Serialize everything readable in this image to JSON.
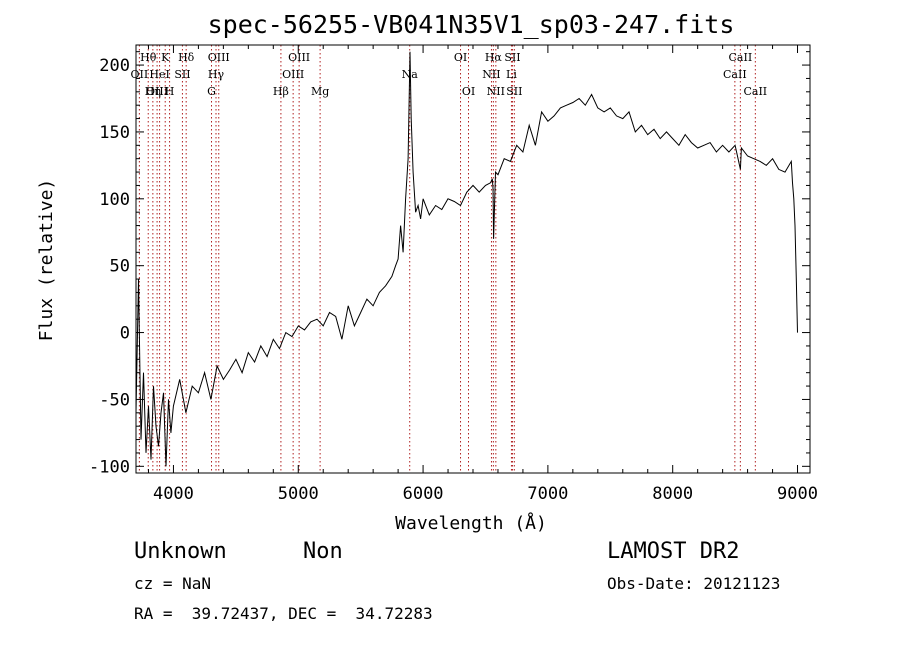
{
  "chart_data": {
    "type": "line",
    "title": "spec-56255-VB041N35V1_sp03-247.fits",
    "xlabel": "Wavelength (Å)",
    "ylabel": "Flux (relative)",
    "xlim": [
      3700,
      9100
    ],
    "ylim": [
      -105,
      215
    ],
    "x_ticks": [
      "4000",
      "5000",
      "6000",
      "7000",
      "8000",
      "9000"
    ],
    "y_ticks": [
      "-100",
      "-50",
      "0",
      "50",
      "100",
      "150",
      "200"
    ],
    "spectrum": {
      "x": [
        3700,
        3720,
        3740,
        3760,
        3780,
        3800,
        3820,
        3840,
        3860,
        3880,
        3900,
        3920,
        3940,
        3960,
        3980,
        4000,
        4050,
        4100,
        4150,
        4200,
        4250,
        4300,
        4350,
        4400,
        4450,
        4500,
        4550,
        4600,
        4650,
        4700,
        4750,
        4800,
        4850,
        4900,
        4950,
        5000,
        5050,
        5100,
        5150,
        5200,
        5250,
        5300,
        5350,
        5400,
        5450,
        5500,
        5550,
        5600,
        5650,
        5700,
        5750,
        5780,
        5800,
        5820,
        5840,
        5860,
        5880,
        5895,
        5905,
        5920,
        5940,
        5960,
        5980,
        6000,
        6050,
        6100,
        6150,
        6200,
        6250,
        6300,
        6350,
        6400,
        6450,
        6500,
        6540,
        6555,
        6560,
        6565,
        6580,
        6600,
        6650,
        6700,
        6750,
        6800,
        6850,
        6900,
        6950,
        7000,
        7050,
        7100,
        7150,
        7200,
        7250,
        7300,
        7350,
        7400,
        7450,
        7500,
        7550,
        7600,
        7650,
        7700,
        7750,
        7800,
        7850,
        7900,
        7950,
        8000,
        8050,
        8100,
        8150,
        8200,
        8250,
        8300,
        8350,
        8400,
        8450,
        8500,
        8542,
        8550,
        8600,
        8650,
        8700,
        8750,
        8800,
        8850,
        8900,
        8950,
        8960,
        8970,
        8980,
        8990,
        9000
      ],
      "y": [
        -60,
        40,
        -80,
        -30,
        -90,
        -55,
        -95,
        -40,
        -70,
        -85,
        -60,
        -45,
        -100,
        -50,
        -75,
        -55,
        -35,
        -60,
        -40,
        -45,
        -30,
        -50,
        -25,
        -35,
        -28,
        -20,
        -30,
        -15,
        -22,
        -10,
        -18,
        -5,
        -12,
        0,
        -3,
        5,
        2,
        8,
        10,
        5,
        15,
        12,
        -5,
        20,
        5,
        15,
        25,
        20,
        30,
        35,
        42,
        50,
        55,
        80,
        60,
        100,
        130,
        210,
        160,
        120,
        90,
        95,
        85,
        100,
        88,
        95,
        92,
        100,
        98,
        95,
        105,
        110,
        105,
        110,
        112,
        115,
        108,
        70,
        120,
        118,
        130,
        128,
        140,
        135,
        155,
        140,
        165,
        158,
        162,
        168,
        170,
        172,
        175,
        170,
        178,
        168,
        165,
        168,
        162,
        160,
        165,
        150,
        155,
        148,
        152,
        145,
        150,
        145,
        140,
        148,
        142,
        138,
        140,
        142,
        135,
        140,
        135,
        140,
        122,
        138,
        132,
        130,
        128,
        125,
        130,
        122,
        120,
        128,
        112,
        100,
        80,
        40,
        0
      ]
    },
    "lines": [
      {
        "name": "Hθ",
        "wave": 3798,
        "row": 0
      },
      {
        "name": "OII",
        "wave": 3727,
        "row": 1
      },
      {
        "name": "OIII",
        "wave": 3869,
        "row": 2
      },
      {
        "name": "K",
        "wave": 3934,
        "row": 0
      },
      {
        "name": "HeI",
        "wave": 3889,
        "row": 1
      },
      {
        "name": "Hη",
        "wave": 3835,
        "row": 2
      },
      {
        "name": "Hδ",
        "wave": 4102,
        "row": 0
      },
      {
        "name": "SII",
        "wave": 4072,
        "row": 1
      },
      {
        "name": "H",
        "wave": 3969,
        "row": 2
      },
      {
        "name": "OIII",
        "wave": 4363,
        "row": 0
      },
      {
        "name": "Hγ",
        "wave": 4341,
        "row": 1
      },
      {
        "name": "G",
        "wave": 4305,
        "row": 2
      },
      {
        "name": "OIII",
        "wave": 5007,
        "row": 0
      },
      {
        "name": "OIII",
        "wave": 4959,
        "row": 1
      },
      {
        "name": "Hβ",
        "wave": 4861,
        "row": 2
      },
      {
        "name": "Mg",
        "wave": 5175,
        "row": 2
      },
      {
        "name": "Na",
        "wave": 5893,
        "row": 1
      },
      {
        "name": "OI",
        "wave": 6300,
        "row": 0
      },
      {
        "name": "OI",
        "wave": 6364,
        "row": 2
      },
      {
        "name": "Hα",
        "wave": 6563,
        "row": 0
      },
      {
        "name": "SII",
        "wave": 6716,
        "row": 0
      },
      {
        "name": "NII",
        "wave": 6548,
        "row": 1
      },
      {
        "name": "Li",
        "wave": 6708,
        "row": 1
      },
      {
        "name": "NII",
        "wave": 6583,
        "row": 2
      },
      {
        "name": "SII",
        "wave": 6731,
        "row": 2
      },
      {
        "name": "CaII",
        "wave": 8542,
        "row": 0
      },
      {
        "name": "CaII",
        "wave": 8498,
        "row": 1
      },
      {
        "name": "CaII",
        "wave": 8662,
        "row": 2
      }
    ]
  },
  "info": {
    "object_class": "Unknown",
    "subclass": "Non",
    "survey": "LAMOST DR2",
    "cz": "cz = NaN",
    "obs_date": "Obs-Date: 20121123",
    "coords": "RA =  39.72437, DEC =  34.72283"
  },
  "colors": {
    "axis": "#000000",
    "spectrum": "#000000",
    "line_marker": "#b02020"
  }
}
